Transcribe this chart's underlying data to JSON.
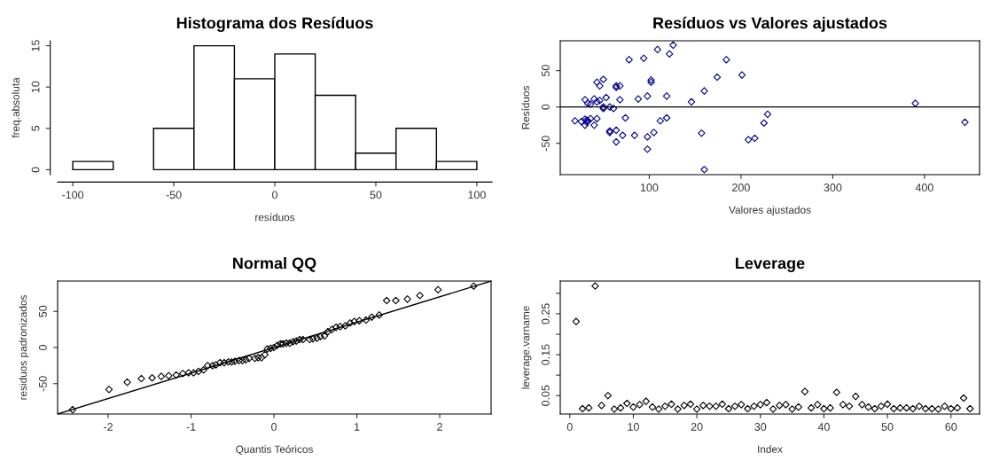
{
  "chart_data": [
    {
      "type": "histogram",
      "title": "Histograma dos Resíduos",
      "xlabel": "resíduos",
      "ylabel": "freq.absoluta",
      "bins": [
        -100,
        -80,
        -60,
        -40,
        -20,
        0,
        20,
        40,
        60,
        80,
        100
      ],
      "values": [
        1,
        0,
        5,
        15,
        11,
        14,
        9,
        2,
        5,
        1
      ],
      "color": "#ffffff",
      "xlim": [
        -107.5,
        107.5
      ],
      "xticks": [
        -100,
        -50,
        0,
        50,
        100
      ],
      "ylim": [
        -0.6,
        15.6
      ],
      "yticks": [
        0,
        5,
        10,
        15
      ],
      "grid": false
    },
    {
      "type": "scatter",
      "title": "Resíduos vs Valores ajustados",
      "xlabel": "Valores ajustados",
      "ylabel": "Resíduos",
      "marker": "diamond",
      "color": "#00008b",
      "x": [
        19,
        26,
        30,
        30,
        30,
        32,
        33,
        33,
        36,
        36,
        40,
        40,
        43,
        43,
        43,
        46,
        46,
        50,
        50,
        50,
        53,
        57,
        57,
        57,
        61,
        64,
        64,
        64,
        64,
        68,
        68,
        71,
        74,
        78,
        84,
        88,
        94,
        98,
        98,
        98,
        102,
        102,
        105,
        109,
        112,
        119,
        119,
        122,
        126,
        146,
        157,
        160,
        160,
        174,
        184,
        201,
        208,
        215,
        225,
        229,
        390,
        444,
        32
      ],
      "values": [
        -19,
        -20,
        10,
        -17,
        -25,
        -21,
        5,
        -19,
        4,
        -16,
        11,
        -25,
        34,
        7,
        -16,
        29,
        9,
        38,
        0,
        -2,
        13,
        0,
        -33,
        -35,
        -2,
        29,
        27,
        -32,
        -48,
        29,
        10,
        -39,
        -15,
        65,
        -39,
        11,
        67,
        15,
        -41,
        -58,
        37,
        34,
        -35,
        79,
        -19,
        15,
        -15,
        73,
        85,
        7,
        -36,
        22,
        -86,
        41,
        65,
        44,
        -45,
        -43,
        -22,
        -10,
        5,
        -21,
        -18
      ],
      "xlim": [
        3,
        460
      ],
      "xticks": [
        100,
        200,
        300,
        400
      ],
      "ylim": [
        -93,
        91
      ],
      "yticks": [
        -50,
        0,
        50
      ],
      "ref_lines": [
        {
          "axis": "y",
          "value": 0,
          "color": "#000000"
        }
      ],
      "grid": false
    },
    {
      "type": "scatter",
      "title": "Normal QQ",
      "xlabel": "Quantis Teóricos",
      "ylabel": "residuos padronizados",
      "marker": "diamond",
      "series": [
        {
          "type": "scatter",
          "color": "#000000",
          "x": [
            -2.43,
            -1.99,
            -1.77,
            -1.6,
            -1.47,
            -1.36,
            -1.27,
            -1.18,
            -1.1,
            -1.03,
            -0.97,
            -0.91,
            -0.85,
            -0.8,
            -0.74,
            -0.7,
            -0.65,
            -0.6,
            -0.55,
            -0.51,
            -0.47,
            -0.42,
            -0.38,
            -0.34,
            -0.3,
            -0.23,
            -0.19,
            -0.15,
            -0.11,
            -0.08,
            -0.04,
            0,
            0.04,
            0.08,
            0.11,
            0.15,
            0.19,
            0.23,
            0.27,
            0.31,
            0.35,
            0.43,
            0.47,
            0.52,
            0.56,
            0.61,
            0.65,
            0.7,
            0.75,
            0.8,
            0.86,
            0.92,
            0.97,
            1.03,
            1.11,
            1.18,
            1.27,
            1.36,
            1.47,
            1.61,
            1.76,
            1.98,
            2.41
          ],
          "values": [
            -86,
            -58,
            -48,
            -43,
            -42,
            -40,
            -39,
            -38,
            -36,
            -35,
            -35,
            -33,
            -31,
            -25,
            -25,
            -24,
            -21,
            -21,
            -20,
            -20,
            -19,
            -18,
            -18,
            -17,
            -15,
            -15,
            -14,
            -14,
            -10,
            -2,
            -1,
            0,
            3,
            5,
            5,
            6,
            6,
            8,
            9,
            11,
            11,
            11,
            12,
            13,
            15,
            16,
            22,
            25,
            28,
            29,
            30,
            34,
            36,
            37,
            38,
            42,
            45,
            65,
            65,
            67,
            72,
            80,
            85
          ]
        },
        {
          "type": "line",
          "marker": "none",
          "color": "#000000",
          "x": [
            -2.61,
            2.62
          ],
          "values": [
            -92,
            92
          ]
        }
      ],
      "xlim": [
        -2.61,
        2.62
      ],
      "xticks": [
        -2,
        -1,
        0,
        1,
        2
      ],
      "ylim": [
        -92,
        92
      ],
      "yticks": [
        -50,
        0,
        50
      ],
      "grid": false
    },
    {
      "type": "scatter",
      "title": "Leverage",
      "xlabel": "Index",
      "ylabel": "leverage.varname",
      "marker": "diamond",
      "color": "#000000",
      "x": [
        1,
        2,
        3,
        4,
        5,
        6,
        7,
        8,
        9,
        10,
        11,
        12,
        13,
        14,
        15,
        16,
        17,
        18,
        19,
        20,
        21,
        22,
        23,
        24,
        25,
        26,
        27,
        28,
        29,
        30,
        31,
        32,
        33,
        34,
        35,
        36,
        37,
        38,
        39,
        40,
        41,
        42,
        43,
        44,
        45,
        46,
        47,
        48,
        49,
        50,
        51,
        52,
        53,
        54,
        55,
        56,
        57,
        58,
        59,
        60,
        61,
        62,
        63
      ],
      "values": [
        0.231,
        0.018,
        0.02,
        0.318,
        0.026,
        0.05,
        0.017,
        0.02,
        0.031,
        0.022,
        0.028,
        0.036,
        0.022,
        0.017,
        0.024,
        0.029,
        0.017,
        0.026,
        0.029,
        0.017,
        0.026,
        0.024,
        0.024,
        0.029,
        0.018,
        0.024,
        0.028,
        0.018,
        0.024,
        0.028,
        0.033,
        0.017,
        0.026,
        0.028,
        0.017,
        0.022,
        0.06,
        0.02,
        0.028,
        0.018,
        0.02,
        0.058,
        0.028,
        0.024,
        0.048,
        0.028,
        0.022,
        0.018,
        0.024,
        0.029,
        0.018,
        0.02,
        0.02,
        0.018,
        0.024,
        0.018,
        0.018,
        0.017,
        0.024,
        0.018,
        0.02,
        0.044,
        0.018
      ],
      "xlim": [
        -1.5,
        64.5
      ],
      "xticks": [
        0,
        10,
        20,
        30,
        40,
        50,
        60
      ],
      "ylim": [
        0.005,
        0.33
      ],
      "yticks": [
        0.05,
        {
          "value": 0.1,
          "label": null
        },
        0.15,
        {
          "value": 0.2,
          "label": null
        },
        0.25,
        {
          "value": 0.3,
          "label": null
        }
      ],
      "grid": false
    }
  ]
}
